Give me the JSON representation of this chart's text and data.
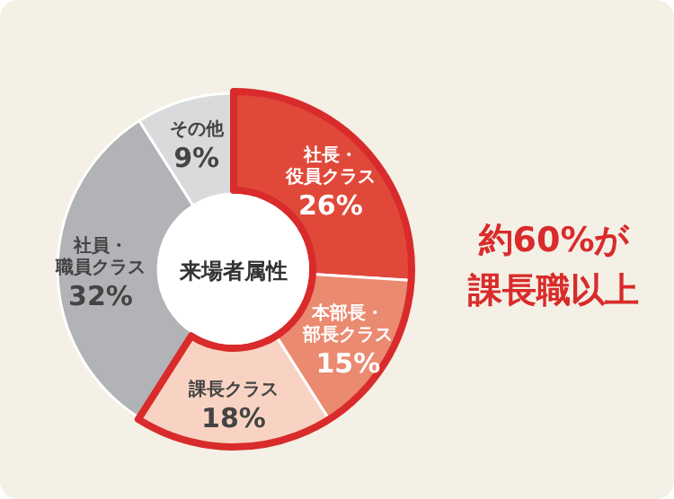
{
  "chart_data": {
    "type": "donut",
    "title": "来場者属性",
    "categories": [
      "社長・役員クラス",
      "本部長・部長クラス",
      "課長クラス",
      "社員・職員クラス",
      "その他"
    ],
    "values": [
      26,
      15,
      18,
      32,
      9
    ],
    "colors": [
      "#e0493a",
      "#ea8a70",
      "#f8d3c3",
      "#b1b3b6",
      "#d8dadb"
    ],
    "value_labels": [
      "26%",
      "15%",
      "18%",
      "32%",
      "9%"
    ],
    "annotations": [
      "約60%が課長職以上"
    ]
  }
}
